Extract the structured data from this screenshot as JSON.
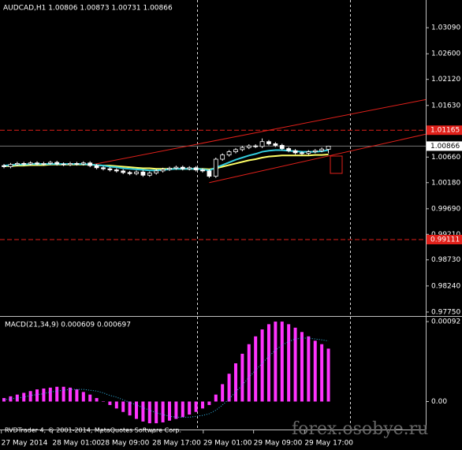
{
  "chart_data": [
    {
      "type": "candlestick",
      "title": "AUDCAD,H1 1.00806 1.00873 1.00731 1.00866",
      "open": [
        1.005,
        1.0048,
        1.0052,
        1.0054,
        1.0053,
        1.0055,
        1.0053,
        1.0054,
        1.0056,
        1.0053,
        1.0052,
        1.0054,
        1.0053,
        1.0055,
        1.005,
        1.0046,
        1.0044,
        1.0042,
        1.004,
        1.0037,
        1.0035,
        1.0038,
        1.0032,
        1.0036,
        1.004,
        1.0043,
        1.0045,
        1.0047,
        1.0044,
        1.0046,
        1.0042,
        1.004,
        1.003,
        1.0062,
        1.007,
        1.0076,
        1.008,
        1.0084,
        1.0087,
        1.0086,
        1.0095,
        1.0091,
        1.0088,
        1.0082,
        1.0078,
        1.0074,
        1.0073,
        1.0076,
        1.0078,
        1.00806
      ],
      "high": [
        1.0053,
        1.0055,
        1.0057,
        1.0057,
        1.0058,
        1.0058,
        1.0057,
        1.0059,
        1.0059,
        1.0056,
        1.0057,
        1.0057,
        1.0058,
        1.0058,
        1.0053,
        1.0049,
        1.0047,
        1.0045,
        1.0043,
        1.004,
        1.0041,
        1.0041,
        1.0039,
        1.0043,
        1.0046,
        1.0048,
        1.005,
        1.005,
        1.0049,
        1.0049,
        1.0045,
        1.0043,
        1.0065,
        1.0073,
        1.0079,
        1.0083,
        1.0087,
        1.009,
        1.009,
        1.0101,
        1.0098,
        1.0094,
        1.0091,
        1.0085,
        1.0081,
        1.0077,
        1.0079,
        1.0081,
        1.0084,
        1.00873
      ],
      "low": [
        1.0045,
        1.0045,
        1.0049,
        1.005,
        1.005,
        1.005,
        1.005,
        1.0051,
        1.005,
        1.0049,
        1.0049,
        1.005,
        1.005,
        1.0047,
        1.0043,
        1.0041,
        1.0039,
        1.0037,
        1.0034,
        1.0032,
        1.0032,
        1.0029,
        1.0029,
        1.0033,
        1.0037,
        1.004,
        1.0042,
        1.0041,
        1.0041,
        1.0039,
        1.0037,
        1.0027,
        1.0027,
        1.0059,
        1.0067,
        1.0073,
        1.0077,
        1.0081,
        1.0083,
        1.0083,
        1.0088,
        1.0085,
        1.0079,
        1.0075,
        1.0071,
        1.007,
        1.007,
        1.0073,
        1.0075,
        1.00731
      ],
      "close": [
        1.0048,
        1.0052,
        1.0054,
        1.0053,
        1.0055,
        1.0053,
        1.0054,
        1.0056,
        1.0053,
        1.0052,
        1.0054,
        1.0053,
        1.0055,
        1.005,
        1.0046,
        1.0044,
        1.0042,
        1.004,
        1.0037,
        1.0035,
        1.0038,
        1.0032,
        1.0036,
        1.004,
        1.0043,
        1.0045,
        1.0047,
        1.0044,
        1.0046,
        1.0042,
        1.004,
        1.003,
        1.0062,
        1.007,
        1.0076,
        1.008,
        1.0084,
        1.0087,
        1.0086,
        1.0095,
        1.0091,
        1.0088,
        1.0082,
        1.0078,
        1.0074,
        1.0073,
        1.0076,
        1.0078,
        1.0081,
        1.00866
      ],
      "moving_averages": [
        {
          "color": "#ffff66",
          "values": [
            1.0049,
            1.0049,
            1.005,
            1.005,
            1.0051,
            1.0051,
            1.0051,
            1.0052,
            1.0052,
            1.0052,
            1.0052,
            1.0052,
            1.0052,
            1.0052,
            1.0051,
            1.005,
            1.005,
            1.0049,
            1.0048,
            1.0047,
            1.0046,
            1.0045,
            1.0045,
            1.0044,
            1.0044,
            1.0044,
            1.0044,
            1.0044,
            1.0044,
            1.0044,
            1.0044,
            1.0043,
            1.0045,
            1.0048,
            1.0051,
            1.0054,
            1.0057,
            1.006,
            1.0062,
            1.0065,
            1.0067,
            1.0068,
            1.0069,
            1.0069,
            1.0069,
            1.0069,
            1.0069,
            1.007,
            1.007,
            1.0071
          ]
        },
        {
          "color": "#33ccdd",
          "values": [
            1.005,
            1.0051,
            1.0052,
            1.0052,
            1.0053,
            1.0053,
            1.0053,
            1.0053,
            1.0053,
            1.0053,
            1.0053,
            1.0053,
            1.0053,
            1.0052,
            1.0051,
            1.005,
            1.0048,
            1.0047,
            1.0045,
            1.0044,
            1.0043,
            1.0042,
            1.0041,
            1.0041,
            1.0042,
            1.0043,
            1.0044,
            1.0044,
            1.0044,
            1.0044,
            1.0043,
            1.0041,
            1.0046,
            1.0051,
            1.0056,
            1.0061,
            1.0065,
            1.0069,
            1.0072,
            1.0076,
            1.0078,
            1.0079,
            1.0079,
            1.0078,
            1.0077,
            1.0076,
            1.0076,
            1.0076,
            1.0077,
            1.0079
          ]
        }
      ],
      "levels": [
        1.01165,
        0.99111
      ],
      "level_color": "#e0201a",
      "current_price": 1.00866,
      "trendlines": [
        {
          "x": [
            12.6,
            63.7
          ],
          "y": [
            1.005,
            1.0174
          ]
        },
        {
          "x": [
            31,
            63.7
          ],
          "y": [
            1.0018,
            1.0109
          ]
        }
      ],
      "trendline_color": "#e0201a",
      "xlim": [
        -0.6,
        63.7
      ],
      "xticks": [
        {
          "value": -0.4,
          "label": "27 May 2014"
        },
        {
          "value": 7.3,
          "label": "28 May 01:00"
        },
        {
          "value": 14.6,
          "label": "28 May 09:00"
        },
        {
          "value": 22.4,
          "label": "28 May 17:00"
        },
        {
          "value": 30.1,
          "label": "29 May 01:00"
        },
        {
          "value": 37.7,
          "label": "29 May 09:00"
        },
        {
          "value": 45.4,
          "label": "29 May 17:00"
        }
      ],
      "ylim": [
        0.9769,
        1.0361
      ],
      "yticks": [
        {
          "value": 1.0309,
          "label": "1.03090"
        },
        {
          "value": 1.026,
          "label": "1.02600"
        },
        {
          "value": 1.0212,
          "label": "1.02120"
        },
        {
          "value": 1.0163,
          "label": "1.01630"
        },
        {
          "value": 1.0066,
          "label": "1.00660"
        },
        {
          "value": 1.0018,
          "label": "1.00180"
        },
        {
          "value": 0.9969,
          "label": "0.99690"
        },
        {
          "value": 0.9921,
          "label": "0.99210"
        },
        {
          "value": 0.9873,
          "label": "0.98730"
        },
        {
          "value": 0.9824,
          "label": "0.98240"
        },
        {
          "value": 0.9775,
          "label": "0.97750"
        }
      ]
    },
    {
      "type": "macd",
      "title": "MACD(21,34,9) 0.000609 0.000697",
      "color": "#ff33ff",
      "values": [
        4e-05,
        6e-05,
        8e-05,
        0.0001,
        0.00012,
        0.00014,
        0.00015,
        0.00016,
        0.00017,
        0.00017,
        0.00016,
        0.00014,
        0.00011,
        8e-05,
        4e-05,
        0,
        -4e-05,
        -8e-05,
        -0.00012,
        -0.00016,
        -0.0002,
        -0.00023,
        -0.00025,
        -0.00025,
        -0.00024,
        -0.00022,
        -0.0002,
        -0.00018,
        -0.00015,
        -0.00012,
        -8e-05,
        -4e-05,
        8e-05,
        0.0002,
        0.00032,
        0.00044,
        0.00055,
        0.00066,
        0.00075,
        0.00083,
        0.00089,
        0.00092,
        0.00092,
        0.00089,
        0.00085,
        0.0008,
        0.00075,
        0.0007,
        0.00066,
        0.000609
      ],
      "signal_color": "#33bbee",
      "signal": [
        2e-05,
        3e-05,
        4e-05,
        5e-05,
        7e-05,
        8e-05,
        9e-05,
        0.00011,
        0.00012,
        0.00013,
        0.00014,
        0.00014,
        0.00014,
        0.00013,
        0.00012,
        0.0001,
        7e-05,
        5e-05,
        2e-05,
        -1e-05,
        -4e-05,
        -7e-05,
        -0.0001,
        -0.00013,
        -0.00015,
        -0.00017,
        -0.00018,
        -0.00018,
        -0.00018,
        -0.00017,
        -0.00016,
        -0.00014,
        -0.0001,
        -4e-05,
        3e-05,
        0.00011,
        0.00019,
        0.00028,
        0.00036,
        0.00044,
        0.00052,
        0.00059,
        0.00065,
        0.00069,
        0.00072,
        0.00073,
        0.00073,
        0.00072,
        0.00071,
        0.000697
      ],
      "ylim": [
        -0.000322,
        0.000966
      ],
      "yticks": [
        0.00092,
        {
          "value": 0,
          "label": "0.00"
        }
      ]
    }
  ],
  "footer": "RVDTrader 4, © 2001-2014, MetaQuotes Software Corp.",
  "watermark": "forex.osobye.ru"
}
